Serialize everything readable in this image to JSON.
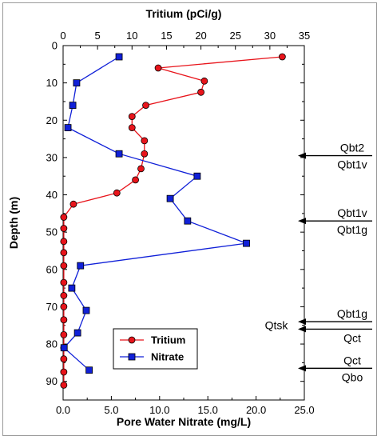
{
  "chart_data": {
    "type": "line",
    "orientation": "depth-profile",
    "top_axis_title": "Tritium (pCi/g)",
    "bottom_axis_title": "Pore Water Nitrate (mg/L)",
    "y_axis_title": "Depth (m)",
    "top_axis": {
      "range": [
        0,
        35
      ],
      "ticks": [
        "0",
        "5",
        "10",
        "15",
        "20",
        "25",
        "30",
        "35"
      ]
    },
    "bottom_axis": {
      "range": [
        0,
        25
      ],
      "ticks": [
        "0.0",
        "5.0",
        "10.0",
        "15.0",
        "20.0",
        "25.0"
      ]
    },
    "y_axis": {
      "range": [
        0,
        95
      ],
      "inverted": true,
      "ticks": [
        "0",
        "10",
        "20",
        "30",
        "40",
        "50",
        "60",
        "70",
        "80",
        "90"
      ]
    },
    "series": [
      {
        "name": "Tritium",
        "axis": "top",
        "marker": "circle",
        "color": "#e8141b",
        "points": [
          {
            "value": 31.8,
            "depth": 3
          },
          {
            "value": 13.8,
            "depth": 6
          },
          {
            "value": 20.5,
            "depth": 9.5
          },
          {
            "value": 20.0,
            "depth": 12.5
          },
          {
            "value": 12.0,
            "depth": 16
          },
          {
            "value": 10.0,
            "depth": 19
          },
          {
            "value": 10.0,
            "depth": 22
          },
          {
            "value": 11.8,
            "depth": 25.5
          },
          {
            "value": 11.8,
            "depth": 29
          },
          {
            "value": 11.3,
            "depth": 33
          },
          {
            "value": 10.5,
            "depth": 36
          },
          {
            "value": 7.8,
            "depth": 39.5
          },
          {
            "value": 1.5,
            "depth": 42.5
          },
          {
            "value": 0.1,
            "depth": 46
          },
          {
            "value": 0.1,
            "depth": 49
          },
          {
            "value": 0.1,
            "depth": 52.5
          },
          {
            "value": 0.1,
            "depth": 55.5
          },
          {
            "value": 0.1,
            "depth": 59
          },
          {
            "value": 0.1,
            "depth": 63.5
          },
          {
            "value": 0.1,
            "depth": 67
          },
          {
            "value": 0.1,
            "depth": 70
          },
          {
            "value": 0.1,
            "depth": 73.5
          },
          {
            "value": 0.1,
            "depth": 77.5
          },
          {
            "value": 0.1,
            "depth": 81
          },
          {
            "value": 0.1,
            "depth": 84
          },
          {
            "value": 0.1,
            "depth": 87.5
          },
          {
            "value": 0.1,
            "depth": 91
          }
        ]
      },
      {
        "name": "Nitrate",
        "axis": "bottom",
        "marker": "square",
        "color": "#1020d8",
        "points": [
          {
            "value": 5.8,
            "depth": 3
          },
          {
            "value": 1.4,
            "depth": 10
          },
          {
            "value": 1.0,
            "depth": 16
          },
          {
            "value": 0.5,
            "depth": 22
          },
          {
            "value": 5.8,
            "depth": 29
          },
          {
            "value": 13.9,
            "depth": 35
          },
          {
            "value": 11.1,
            "depth": 41
          },
          {
            "value": 12.9,
            "depth": 47
          },
          {
            "value": 19.0,
            "depth": 53
          },
          {
            "value": 1.8,
            "depth": 59
          },
          {
            "value": 0.9,
            "depth": 65
          },
          {
            "value": 2.4,
            "depth": 71
          },
          {
            "value": 1.5,
            "depth": 77
          },
          {
            "value": 0.1,
            "depth": 81
          },
          {
            "value": 2.7,
            "depth": 87
          }
        ]
      }
    ],
    "legend": {
      "placement": "bottom-center",
      "entries": [
        "Tritium",
        "Nitrate"
      ]
    },
    "annotations": [
      {
        "depth": 29.5,
        "above": "Qbt2",
        "below": "Qbt1v"
      },
      {
        "depth": 47,
        "above": "Qbt1v",
        "below": "Qbt1g"
      },
      {
        "depth": 74,
        "above": "Qbt1g",
        "below": ""
      },
      {
        "depth": 76,
        "above": "",
        "below": "Qct"
      },
      {
        "depth": 86.5,
        "above": "Qct",
        "below": "Qbo"
      }
    ],
    "side_label": "Qtsk"
  }
}
